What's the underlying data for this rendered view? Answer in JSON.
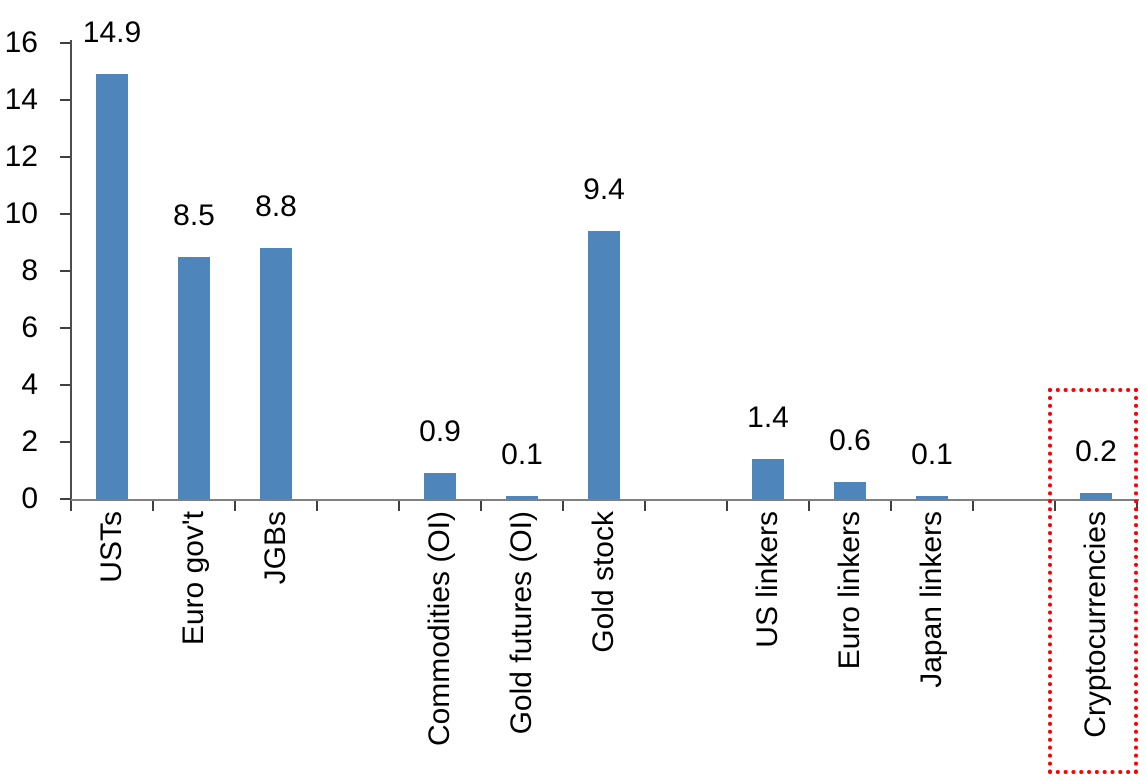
{
  "chart_data": {
    "type": "bar",
    "title": "",
    "xlabel": "",
    "ylabel": "",
    "categories": [
      "USTs",
      "Euro gov't",
      "JGBs",
      "Commodities (OI)",
      "Gold futures (OI)",
      "Gold stock",
      "US linkers",
      "Euro linkers",
      "Japan linkers",
      "Cryptocurrencies"
    ],
    "values": [
      14.9,
      8.5,
      8.8,
      0.9,
      0.1,
      9.4,
      1.4,
      0.6,
      0.1,
      0.2
    ],
    "data_labels": [
      "14.9",
      "8.5",
      "8.8",
      "0.9",
      "0.1",
      "9.4",
      "1.4",
      "0.6",
      "0.1",
      "0.2"
    ],
    "slots": [
      0,
      1,
      2,
      4,
      5,
      6,
      8,
      9,
      10,
      12
    ],
    "total_slots": 13,
    "group_gaps_after": [
      "JGBs",
      "Gold stock",
      "Japan linkers"
    ],
    "y_axis": {
      "min": 0,
      "max": 16,
      "step": 2,
      "tick_labels": [
        "0",
        "2",
        "4",
        "6",
        "8",
        "10",
        "12",
        "14",
        "16"
      ]
    },
    "grid": false,
    "legend": false,
    "bar_color": "#4E86BC",
    "x_axis_line_color": "#808080",
    "y_axis_line_color": "#4d4d4d",
    "tick_color": "#404040",
    "text_color": "#000000",
    "highlight": {
      "category": "Cryptocurrencies",
      "shape": "dotted-rectangle",
      "color": "#FF0000"
    }
  }
}
